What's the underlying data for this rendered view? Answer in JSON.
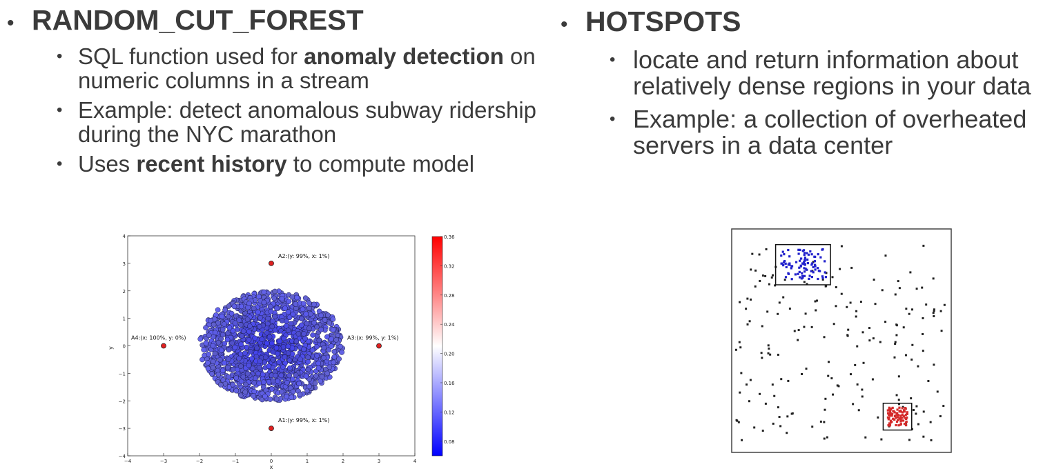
{
  "left": {
    "heading": "RANDOM_CUT_FOREST",
    "bullets": [
      {
        "parts": [
          {
            "t": "SQL function used for "
          },
          {
            "t": "anomaly detection",
            "b": true
          },
          {
            "t": " on numeric columns in a stream"
          }
        ]
      },
      {
        "parts": [
          {
            "t": "Example: detect anomalous subway ridership during the NYC marathon"
          }
        ]
      },
      {
        "parts": [
          {
            "t": "Uses "
          },
          {
            "t": "recent history",
            "b": true
          },
          {
            "t": " to compute model"
          }
        ]
      }
    ]
  },
  "right": {
    "heading": "HOTSPOTS",
    "bullets": [
      {
        "parts": [
          {
            "t": "locate and return information about relatively dense regions in your data"
          }
        ]
      },
      {
        "parts": [
          {
            "t": "Example: a collection of overheated servers in a data center"
          }
        ]
      }
    ]
  },
  "chart_data": [
    {
      "type": "scatter",
      "title": "",
      "xlabel": "x",
      "ylabel": "y",
      "xlim": [
        -4,
        4
      ],
      "ylim": [
        -4,
        4
      ],
      "xticks": [
        "−4",
        "−3",
        "−2",
        "−1",
        "0",
        "1",
        "2",
        "3",
        "4"
      ],
      "yticks": [
        "−4",
        "−3",
        "−2",
        "−1",
        "0",
        "1",
        "2",
        "3",
        "4"
      ],
      "cluster": {
        "center": [
          0,
          0
        ],
        "rx": 2.0,
        "ry": 2.0,
        "color": "#4a4af0"
      },
      "anomalies": [
        {
          "x": 0,
          "y": 3,
          "label": "A2:(y: 99%, x: 1%)"
        },
        {
          "x": 3,
          "y": 0,
          "label": "A3:(x: 99%, y: 1%)"
        },
        {
          "x": 0,
          "y": -3,
          "label": "A1:(y: 99%, x: 1%)"
        },
        {
          "x": -3,
          "y": 0,
          "label": "A4:(x: 100%, y: 0%)"
        }
      ],
      "colorbar": {
        "ticks": [
          "0.36",
          "0.32",
          "0.28",
          "0.24",
          "0.20",
          "0.16",
          "0.12",
          "0.08"
        ],
        "min": 0.06,
        "max": 0.36,
        "colors": [
          "#0000ff",
          "#ffffff",
          "#ff0000"
        ]
      }
    },
    {
      "type": "scatter",
      "title": "",
      "xlim": [
        0,
        1
      ],
      "ylim": [
        0,
        1
      ],
      "background_points_color": "#222222",
      "hotspots": [
        {
          "color": "#2222cc",
          "box": [
            0.2,
            0.75,
            0.45,
            0.93
          ]
        },
        {
          "color": "#d42a2a",
          "box": [
            0.69,
            0.1,
            0.82,
            0.22
          ]
        }
      ]
    }
  ]
}
